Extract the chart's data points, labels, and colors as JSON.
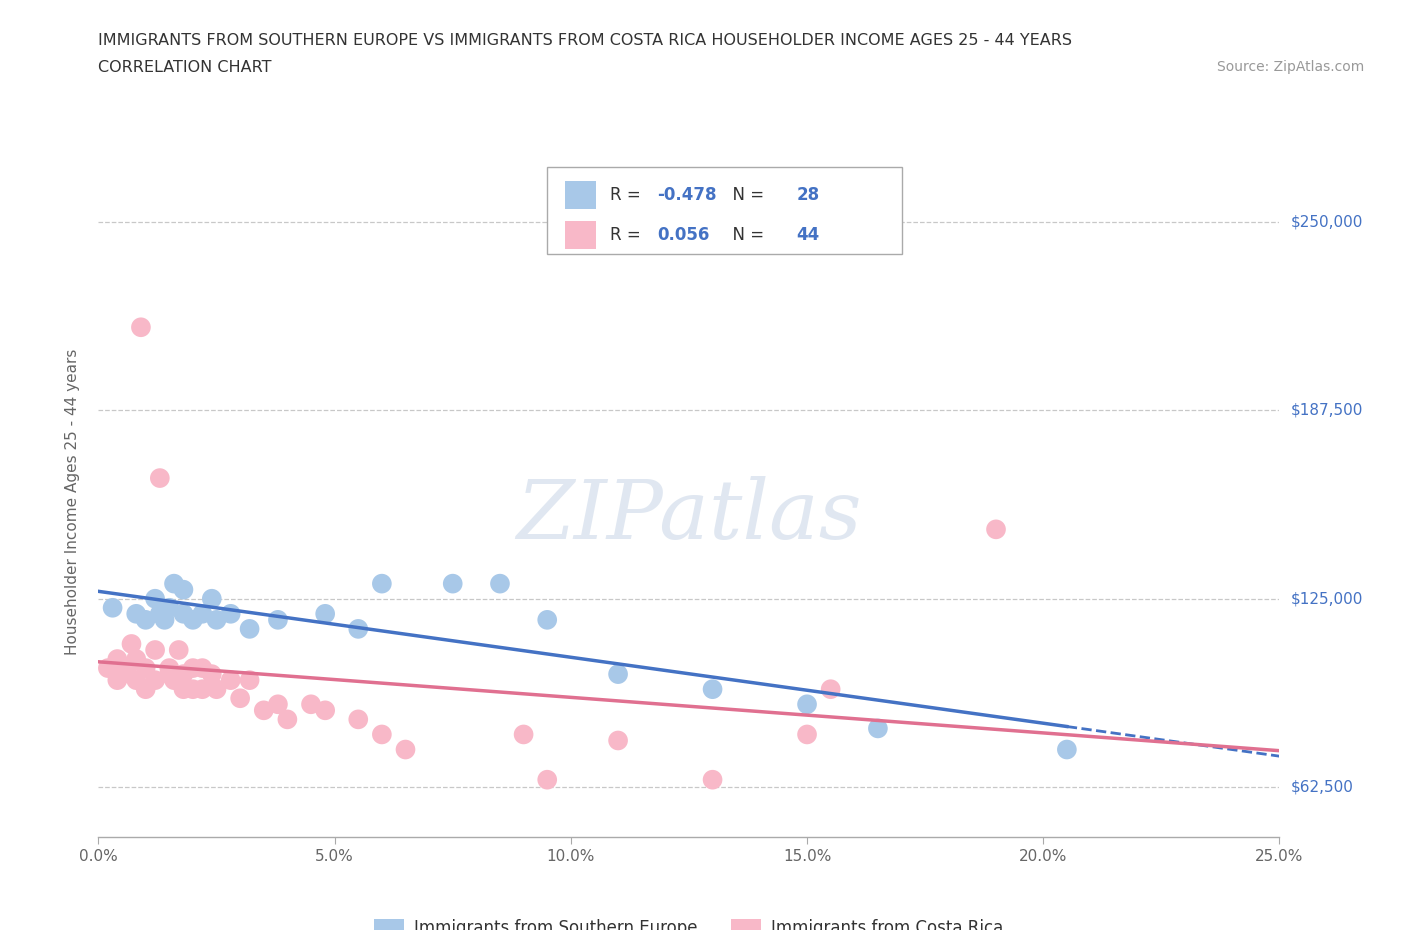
{
  "title_line1": "IMMIGRANTS FROM SOUTHERN EUROPE VS IMMIGRANTS FROM COSTA RICA HOUSEHOLDER INCOME AGES 25 - 44 YEARS",
  "title_line2": "CORRELATION CHART",
  "source_text": "Source: ZipAtlas.com",
  "ylabel": "Householder Income Ages 25 - 44 years",
  "xlim": [
    0.0,
    0.25
  ],
  "ylim": [
    46000,
    268000
  ],
  "xtick_labels": [
    "0.0%",
    "5.0%",
    "10.0%",
    "15.0%",
    "20.0%",
    "25.0%"
  ],
  "xtick_vals": [
    0.0,
    0.05,
    0.1,
    0.15,
    0.2,
    0.25
  ],
  "ytick_vals": [
    62500,
    125000,
    187500,
    250000
  ],
  "ytick_labels": [
    "$62,500",
    "$125,000",
    "$187,500",
    "$250,000"
  ],
  "grid_color": "#c8c8c8",
  "watermark": "ZIPatlas",
  "legend_blue_label": "Immigrants from Southern Europe",
  "legend_pink_label": "Immigrants from Costa Rica",
  "r_blue": -0.478,
  "n_blue": 28,
  "r_pink": 0.056,
  "n_pink": 44,
  "blue_color": "#a8c8e8",
  "pink_color": "#f8b8c8",
  "trendline_blue_color": "#4472c4",
  "trendline_pink_color": "#e07090",
  "blue_scatter_x": [
    0.003,
    0.008,
    0.01,
    0.012,
    0.013,
    0.014,
    0.015,
    0.016,
    0.018,
    0.018,
    0.02,
    0.022,
    0.024,
    0.025,
    0.028,
    0.032,
    0.038,
    0.048,
    0.055,
    0.06,
    0.075,
    0.085,
    0.095,
    0.11,
    0.13,
    0.15,
    0.165,
    0.205
  ],
  "blue_scatter_y": [
    122000,
    120000,
    118000,
    125000,
    120000,
    118000,
    122000,
    130000,
    128000,
    120000,
    118000,
    120000,
    125000,
    118000,
    120000,
    115000,
    118000,
    120000,
    115000,
    130000,
    130000,
    130000,
    118000,
    100000,
    95000,
    90000,
    82000,
    75000
  ],
  "pink_scatter_x": [
    0.002,
    0.004,
    0.004,
    0.005,
    0.006,
    0.007,
    0.008,
    0.008,
    0.009,
    0.01,
    0.01,
    0.012,
    0.012,
    0.013,
    0.015,
    0.015,
    0.016,
    0.017,
    0.018,
    0.018,
    0.02,
    0.02,
    0.022,
    0.022,
    0.024,
    0.025,
    0.028,
    0.03,
    0.032,
    0.035,
    0.038,
    0.04,
    0.045,
    0.048,
    0.055,
    0.06,
    0.065,
    0.09,
    0.095,
    0.11,
    0.13,
    0.15,
    0.155,
    0.19
  ],
  "pink_scatter_y": [
    102000,
    98000,
    105000,
    100000,
    102000,
    110000,
    98000,
    105000,
    215000,
    102000,
    95000,
    98000,
    108000,
    165000,
    102000,
    100000,
    98000,
    108000,
    100000,
    95000,
    102000,
    95000,
    102000,
    95000,
    100000,
    95000,
    98000,
    92000,
    98000,
    88000,
    90000,
    85000,
    90000,
    88000,
    85000,
    80000,
    75000,
    80000,
    65000,
    78000,
    65000,
    80000,
    95000,
    148000
  ]
}
